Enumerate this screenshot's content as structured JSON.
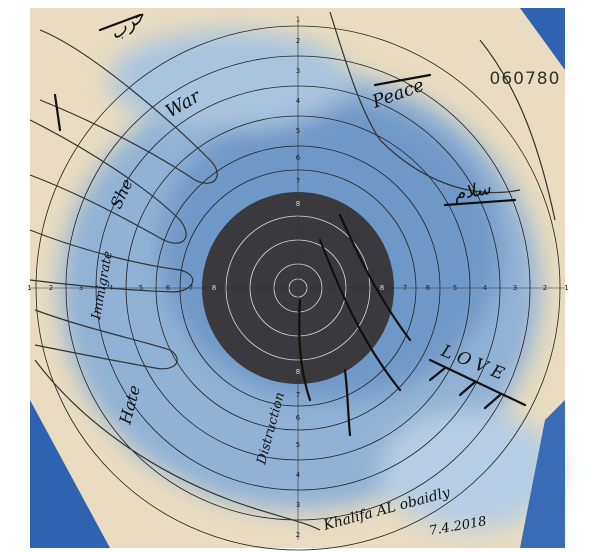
{
  "artwork": {
    "serial_number": "060780",
    "ring_labels": [
      "1",
      "2",
      "3",
      "4",
      "5",
      "6",
      "7",
      "8"
    ],
    "handwriting": {
      "arabic_war": "حرب",
      "war": "War",
      "peace": "Peace",
      "arabic_peace": "سلام",
      "she": "She",
      "immigrate": "Immigrate",
      "hate": "Hate",
      "destruction": "Distruction",
      "love": "L O V E",
      "signature": "Khalifa AL obaidly",
      "date": "7.4.2018"
    }
  }
}
